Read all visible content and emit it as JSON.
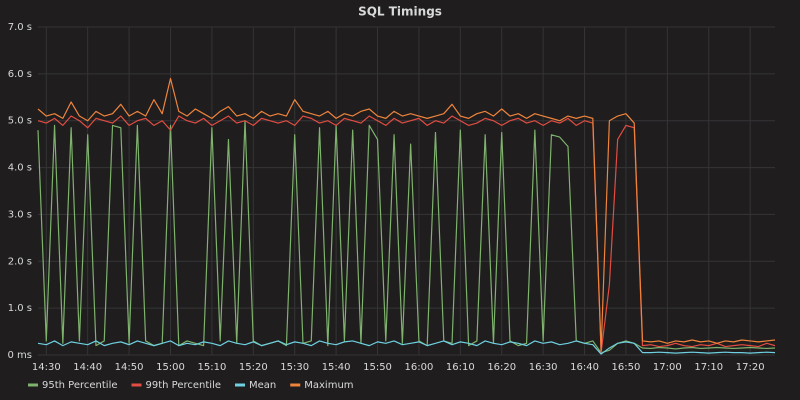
{
  "chart_data": {
    "type": "line",
    "title": "SQL Timings",
    "x": [
      "14:28",
      "14:30",
      "14:32",
      "14:34",
      "14:36",
      "14:38",
      "14:40",
      "14:42",
      "14:44",
      "14:46",
      "14:48",
      "14:50",
      "14:52",
      "14:54",
      "14:56",
      "14:58",
      "15:00",
      "15:02",
      "15:04",
      "15:06",
      "15:08",
      "15:10",
      "15:12",
      "15:14",
      "15:16",
      "15:18",
      "15:20",
      "15:22",
      "15:24",
      "15:26",
      "15:28",
      "15:30",
      "15:32",
      "15:34",
      "15:36",
      "15:38",
      "15:40",
      "15:42",
      "15:44",
      "15:46",
      "15:48",
      "15:50",
      "15:52",
      "15:54",
      "15:56",
      "15:58",
      "16:00",
      "16:02",
      "16:04",
      "16:06",
      "16:08",
      "16:10",
      "16:12",
      "16:14",
      "16:16",
      "16:18",
      "16:20",
      "16:22",
      "16:24",
      "16:26",
      "16:28",
      "16:30",
      "16:32",
      "16:34",
      "16:36",
      "16:38",
      "16:40",
      "16:42",
      "16:44",
      "16:46",
      "16:48",
      "16:50",
      "16:52",
      "16:54",
      "16:56",
      "16:58",
      "17:00",
      "17:02",
      "17:04",
      "17:06",
      "17:08",
      "17:10",
      "17:12",
      "17:14",
      "17:16",
      "17:18",
      "17:20",
      "17:22",
      "17:24",
      "17:26"
    ],
    "xlim": [
      "14:28",
      "17:26"
    ],
    "xticks": [
      "14:30",
      "14:40",
      "14:50",
      "15:00",
      "15:10",
      "15:20",
      "15:30",
      "15:40",
      "15:50",
      "16:00",
      "16:10",
      "16:20",
      "16:30",
      "16:40",
      "16:50",
      "17:00",
      "17:10",
      "17:20"
    ],
    "ylim": [
      0,
      7
    ],
    "yticks": [
      {
        "value": 0,
        "label": "0 ms"
      },
      {
        "value": 1,
        "label": "1.0 s"
      },
      {
        "value": 2,
        "label": "2.0 s"
      },
      {
        "value": 3,
        "label": "3.0 s"
      },
      {
        "value": 4,
        "label": "4.0 s"
      },
      {
        "value": 5,
        "label": "5.0 s"
      },
      {
        "value": 6,
        "label": "6.0 s"
      },
      {
        "value": 7,
        "label": "7.0 s"
      }
    ],
    "grid": true,
    "legend": "bottom",
    "series": [
      {
        "name": "95th Percentile",
        "color": "#7eb26d",
        "values": [
          4.8,
          0.3,
          4.9,
          0.25,
          4.85,
          0.3,
          4.7,
          0.2,
          0.3,
          4.9,
          4.85,
          0.25,
          4.9,
          0.3,
          0.2,
          0.25,
          4.9,
          0.2,
          0.3,
          0.25,
          0.2,
          4.85,
          0.3,
          4.6,
          0.25,
          5.0,
          0.3,
          0.2,
          0.25,
          0.3,
          0.2,
          4.7,
          0.25,
          0.3,
          4.85,
          0.2,
          4.9,
          0.3,
          4.8,
          0.25,
          4.9,
          4.6,
          0.3,
          4.7,
          0.25,
          4.5,
          0.3,
          0.2,
          4.75,
          0.3,
          0.25,
          4.8,
          0.2,
          0.3,
          4.7,
          0.25,
          4.75,
          0.3,
          0.2,
          0.25,
          4.8,
          0.3,
          4.7,
          4.65,
          4.45,
          0.3,
          0.25,
          0.3,
          0.05,
          0.1,
          0.25,
          0.3,
          0.25,
          0.15,
          0.14,
          0.16,
          0.15,
          0.13,
          0.15,
          0.16,
          0.14,
          0.15,
          0.16,
          0.15,
          0.14,
          0.15,
          0.16,
          0.15,
          0.14,
          0.15
        ]
      },
      {
        "name": "99th Percentile",
        "color": "#e24d42",
        "values": [
          5.0,
          4.95,
          5.05,
          4.9,
          5.1,
          5.0,
          4.85,
          5.05,
          5.0,
          4.95,
          5.1,
          4.9,
          5.0,
          5.05,
          4.9,
          5.0,
          4.8,
          5.1,
          5.0,
          4.95,
          5.05,
          4.9,
          5.0,
          5.1,
          4.95,
          5.0,
          4.9,
          5.05,
          5.0,
          4.95,
          5.0,
          4.9,
          5.1,
          5.05,
          4.95,
          5.0,
          4.9,
          5.05,
          5.0,
          4.95,
          5.1,
          5.0,
          4.9,
          5.05,
          4.95,
          5.0,
          5.05,
          4.9,
          5.0,
          4.95,
          5.1,
          5.0,
          4.9,
          4.95,
          5.05,
          5.0,
          4.9,
          5.0,
          5.05,
          4.95,
          5.0,
          4.9,
          5.0,
          4.95,
          5.05,
          4.9,
          5.0,
          4.95,
          0.05,
          1.5,
          4.6,
          4.9,
          4.85,
          0.2,
          0.22,
          0.18,
          0.2,
          0.25,
          0.2,
          0.18,
          0.22,
          0.2,
          0.25,
          0.18,
          0.2,
          0.22,
          0.2,
          0.18,
          0.25,
          0.2
        ]
      },
      {
        "name": "Mean",
        "color": "#6ed0e0",
        "values": [
          0.25,
          0.22,
          0.3,
          0.2,
          0.28,
          0.25,
          0.22,
          0.3,
          0.2,
          0.25,
          0.28,
          0.22,
          0.3,
          0.25,
          0.2,
          0.25,
          0.3,
          0.2,
          0.25,
          0.22,
          0.28,
          0.25,
          0.2,
          0.3,
          0.25,
          0.22,
          0.28,
          0.2,
          0.25,
          0.3,
          0.22,
          0.28,
          0.25,
          0.2,
          0.3,
          0.25,
          0.22,
          0.28,
          0.3,
          0.25,
          0.2,
          0.28,
          0.25,
          0.3,
          0.22,
          0.25,
          0.28,
          0.2,
          0.25,
          0.3,
          0.22,
          0.28,
          0.25,
          0.2,
          0.3,
          0.25,
          0.22,
          0.28,
          0.25,
          0.2,
          0.3,
          0.25,
          0.28,
          0.22,
          0.25,
          0.3,
          0.25,
          0.22,
          0.02,
          0.15,
          0.25,
          0.28,
          0.25,
          0.05,
          0.05,
          0.06,
          0.05,
          0.04,
          0.05,
          0.06,
          0.05,
          0.04,
          0.05,
          0.06,
          0.05,
          0.05,
          0.04,
          0.05,
          0.06,
          0.05
        ]
      },
      {
        "name": "Maximum",
        "color": "#ef843c",
        "values": [
          5.25,
          5.1,
          5.15,
          5.05,
          5.4,
          5.1,
          5.0,
          5.2,
          5.1,
          5.15,
          5.35,
          5.1,
          5.2,
          5.1,
          5.45,
          5.15,
          5.9,
          5.2,
          5.1,
          5.25,
          5.15,
          5.05,
          5.2,
          5.3,
          5.1,
          5.15,
          5.05,
          5.2,
          5.1,
          5.15,
          5.1,
          5.45,
          5.2,
          5.15,
          5.1,
          5.2,
          5.05,
          5.15,
          5.1,
          5.2,
          5.25,
          5.1,
          5.05,
          5.2,
          5.1,
          5.15,
          5.1,
          5.05,
          5.1,
          5.15,
          5.35,
          5.1,
          5.05,
          5.15,
          5.2,
          5.1,
          5.25,
          5.1,
          5.15,
          5.05,
          5.15,
          5.1,
          5.05,
          5.0,
          5.1,
          5.05,
          5.1,
          5.05,
          0.1,
          5.0,
          5.1,
          5.15,
          4.95,
          0.3,
          0.28,
          0.3,
          0.25,
          0.3,
          0.28,
          0.32,
          0.28,
          0.3,
          0.25,
          0.3,
          0.28,
          0.32,
          0.3,
          0.28,
          0.3,
          0.32
        ]
      }
    ]
  }
}
